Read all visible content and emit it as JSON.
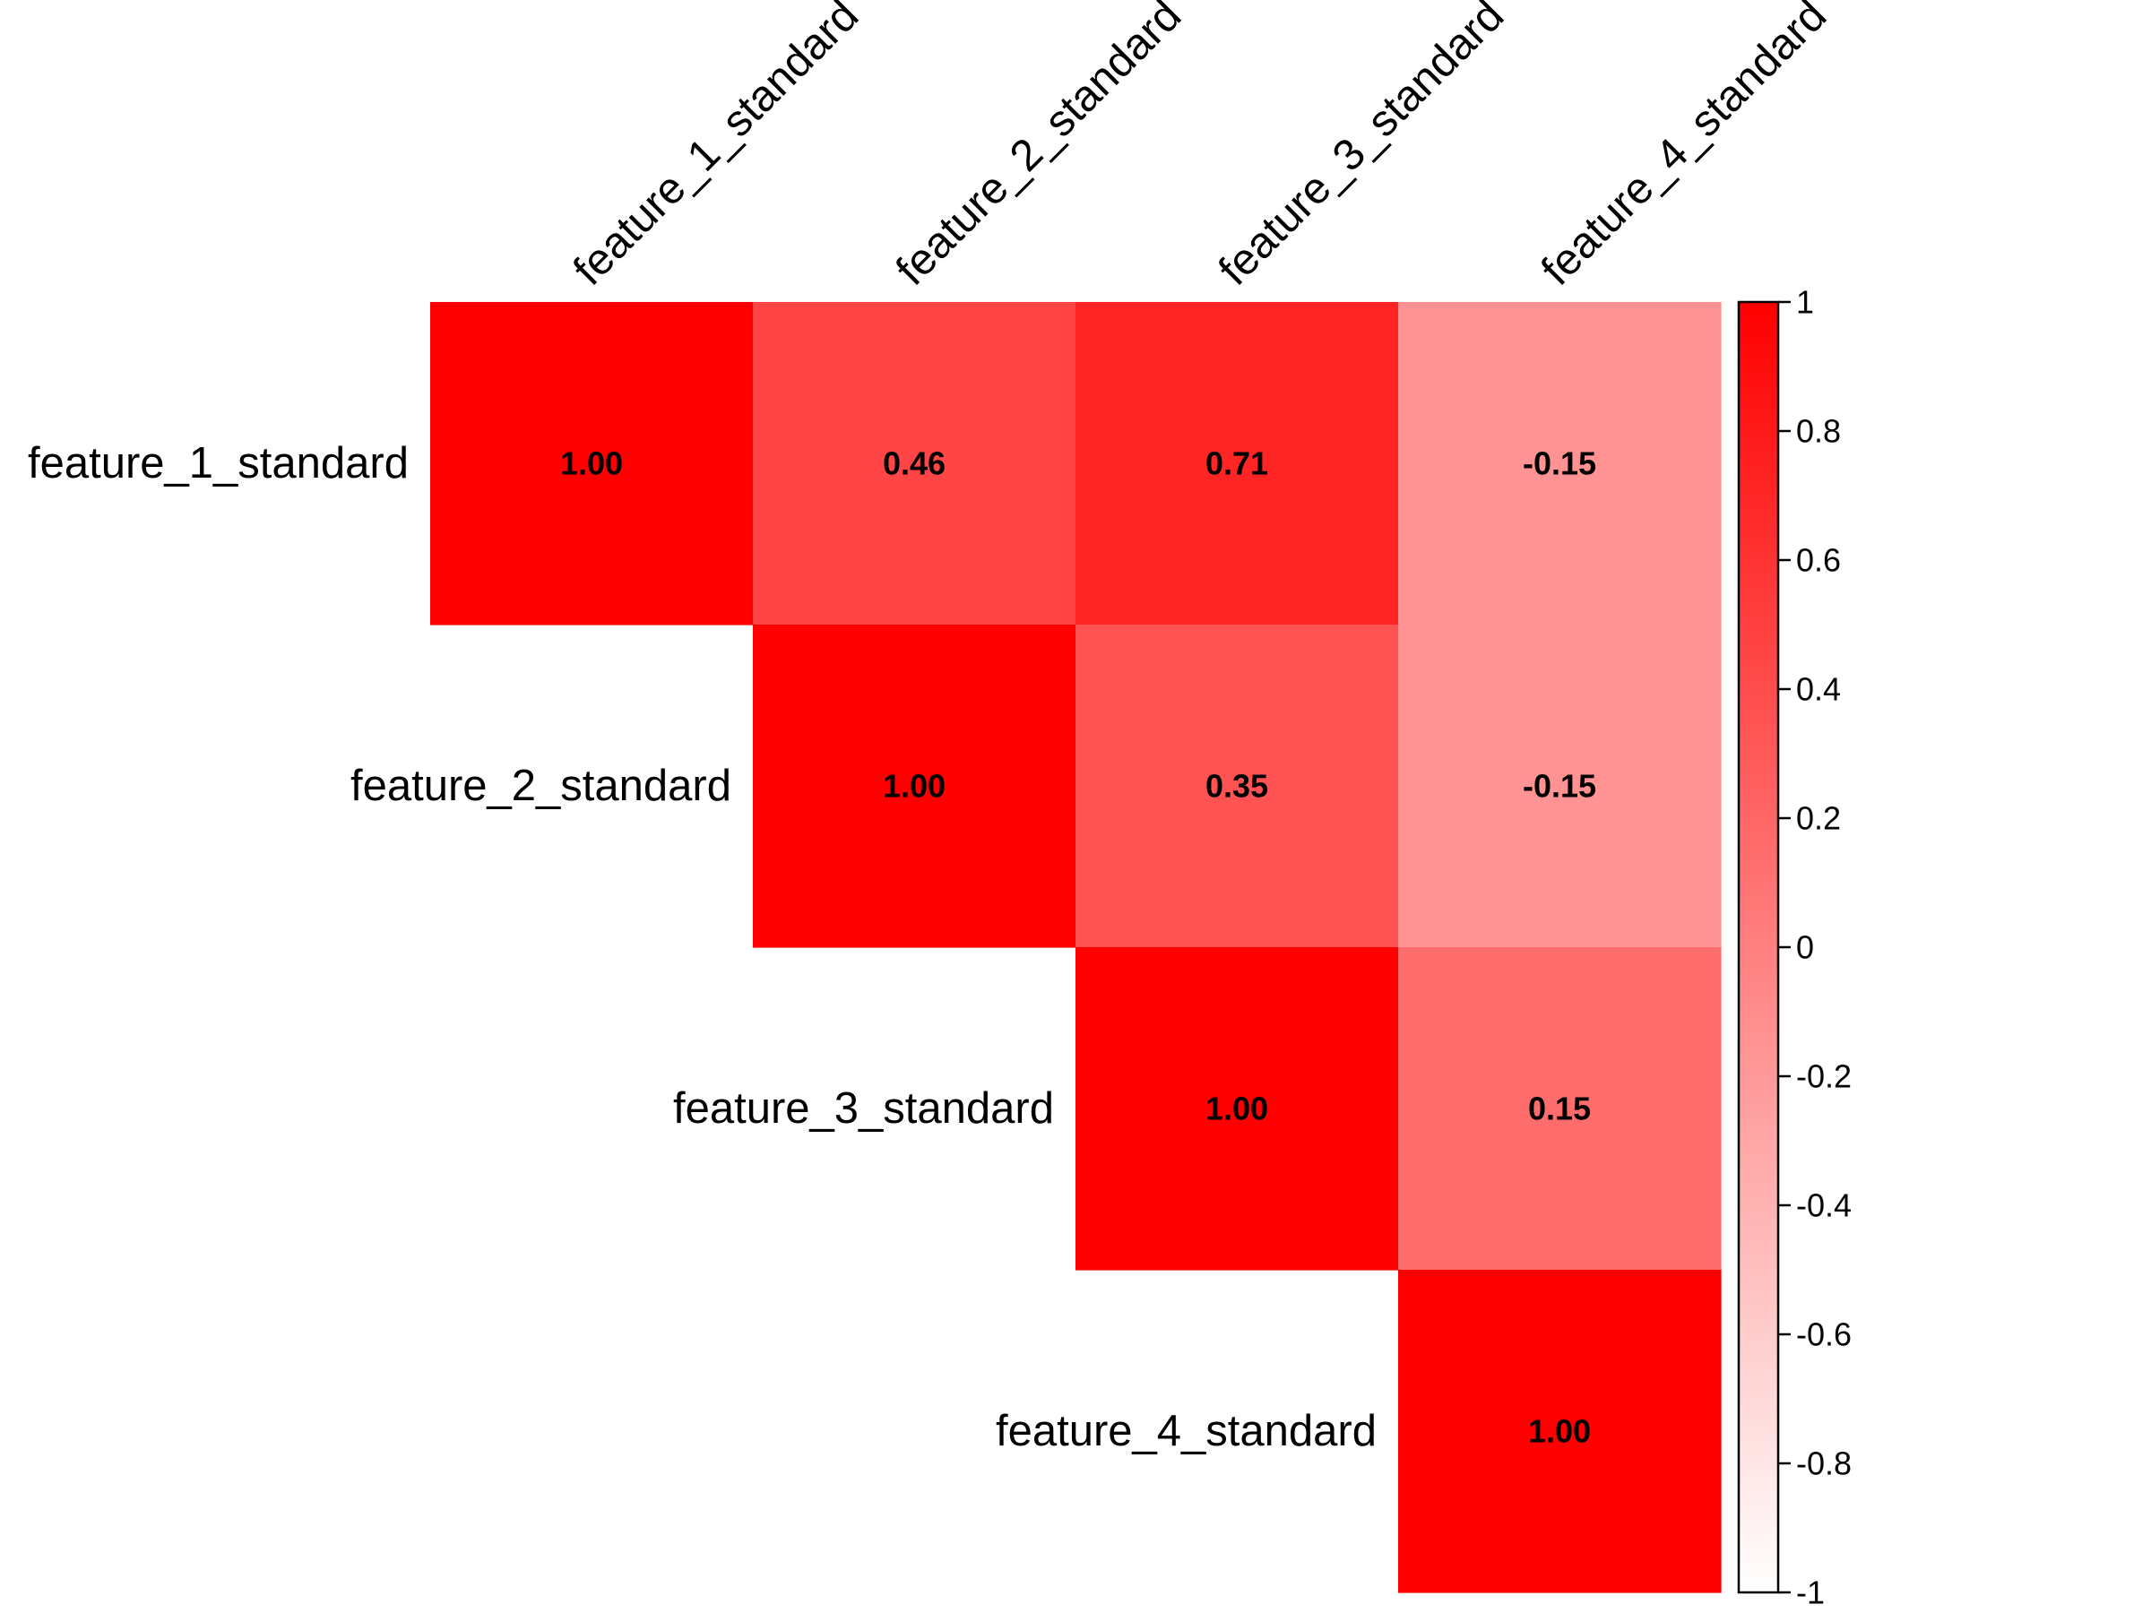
{
  "chart_data": {
    "type": "heatmap",
    "subtype": "correlation-matrix-upper-triangle",
    "rows": [
      "feature_1_standard",
      "feature_2_standard",
      "feature_3_standard",
      "feature_4_standard"
    ],
    "columns": [
      "feature_1_standard",
      "feature_2_standard",
      "feature_3_standard",
      "feature_4_standard"
    ],
    "cells": [
      {
        "row": 0,
        "col": 0,
        "value": 1.0,
        "label": "1.00"
      },
      {
        "row": 0,
        "col": 1,
        "value": 0.46,
        "label": "0.46"
      },
      {
        "row": 0,
        "col": 2,
        "value": 0.71,
        "label": "0.71"
      },
      {
        "row": 0,
        "col": 3,
        "value": -0.15,
        "label": "-0.15"
      },
      {
        "row": 1,
        "col": 1,
        "value": 1.0,
        "label": "1.00"
      },
      {
        "row": 1,
        "col": 2,
        "value": 0.35,
        "label": "0.35"
      },
      {
        "row": 1,
        "col": 3,
        "value": -0.15,
        "label": "-0.15"
      },
      {
        "row": 2,
        "col": 2,
        "value": 1.0,
        "label": "1.00"
      },
      {
        "row": 2,
        "col": 3,
        "value": 0.15,
        "label": "0.15"
      },
      {
        "row": 3,
        "col": 3,
        "value": 1.0,
        "label": "1.00"
      }
    ],
    "colorbar": {
      "range": [
        -1,
        1
      ],
      "ticks": [
        "1",
        "0.8",
        "0.6",
        "0.4",
        "0.2",
        "0",
        "-0.2",
        "-0.4",
        "-0.6",
        "-0.8",
        "-1"
      ],
      "low_color": "#ffffff",
      "high_color": "#ff0000"
    },
    "grid": false,
    "legend": "right"
  }
}
